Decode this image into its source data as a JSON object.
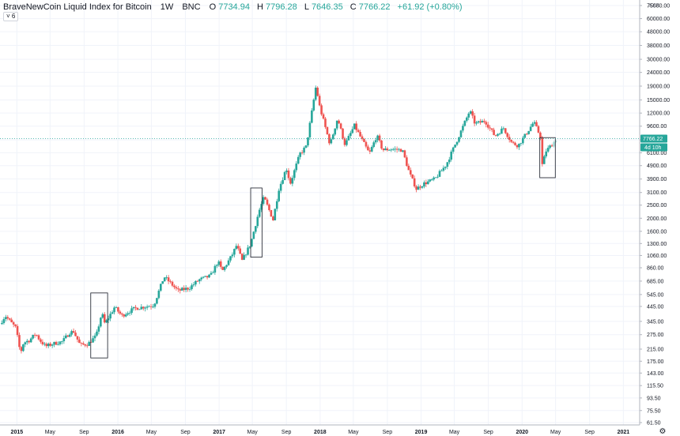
{
  "header": {
    "symbol": "BraveNewCoin Liquid Index for Bitcoin",
    "interval": "1W",
    "exchange": "BNC",
    "open_label": "O",
    "open": "7734.94",
    "high_label": "H",
    "high": "7796.28",
    "low_label": "L",
    "low": "7646.35",
    "close_label": "C",
    "close": "7766.22",
    "change": "+61.92 (+0.80%)",
    "indicator_toggle": "6"
  },
  "axis": {
    "currency": "XXX",
    "price_badge": "7766.22",
    "countdown_badge": "4d 10h",
    "gear": "⚙"
  },
  "colors": {
    "up": "#26a69a",
    "down": "#ef5350",
    "up_light": "#a6dbd6",
    "grid": "#f0f3fa",
    "price_line": "#26a69a"
  },
  "chart_data": {
    "type": "candlestick",
    "y_scale": "log",
    "ylim": [
      61.5,
      75000
    ],
    "y_ticks": [
      "61.50",
      "75.50",
      "93.50",
      "115.50",
      "143.00",
      "175.00",
      "215.00",
      "275.00",
      "345.00",
      "445.00",
      "545.00",
      "685.00",
      "860.00",
      "1060.00",
      "1300.00",
      "1600.00",
      "2000.00",
      "2500.00",
      "3100.00",
      "3900.00",
      "4900.00",
      "6100.00",
      "7600.00",
      "9600.00",
      "12000.00",
      "15000.00",
      "19000.00",
      "24000.00",
      "30000.00",
      "38000.00",
      "48000.00",
      "60000.00",
      "75000.00"
    ],
    "x_ticks": [
      "2015",
      "May",
      "Sep",
      "2016",
      "May",
      "Sep",
      "2017",
      "May",
      "Sep",
      "2018",
      "May",
      "Sep",
      "2019",
      "May",
      "Sep",
      "2020",
      "May",
      "Sep",
      "2021"
    ],
    "x_range": [
      "2014-11-01",
      "2021-03-01"
    ],
    "last_price": 7766.22,
    "path_points": [
      [
        "2014-11-01",
        330
      ],
      [
        "2014-11-20",
        380
      ],
      [
        "2014-12-10",
        340
      ],
      [
        "2014-12-28",
        310
      ],
      [
        "2015-01-14",
        200
      ],
      [
        "2015-01-25",
        240
      ],
      [
        "2015-02-15",
        250
      ],
      [
        "2015-03-10",
        280
      ],
      [
        "2015-03-25",
        250
      ],
      [
        "2015-04-15",
        225
      ],
      [
        "2015-05-10",
        235
      ],
      [
        "2015-06-15",
        245
      ],
      [
        "2015-07-10",
        285
      ],
      [
        "2015-07-25",
        290
      ],
      [
        "2015-08-18",
        230
      ],
      [
        "2015-09-15",
        235
      ],
      [
        "2015-10-15",
        270
      ],
      [
        "2015-11-04",
        400
      ],
      [
        "2015-11-15",
        330
      ],
      [
        "2015-12-20",
        440
      ],
      [
        "2016-01-15",
        380
      ],
      [
        "2016-03-01",
        430
      ],
      [
        "2016-05-10",
        455
      ],
      [
        "2016-06-16",
        740
      ],
      [
        "2016-07-10",
        660
      ],
      [
        "2016-08-05",
        580
      ],
      [
        "2016-09-15",
        610
      ],
      [
        "2016-10-20",
        700
      ],
      [
        "2016-12-01",
        750
      ],
      [
        "2016-12-28",
        960
      ],
      [
        "2017-01-12",
        810
      ],
      [
        "2017-02-15",
        1050
      ],
      [
        "2017-03-05",
        1260
      ],
      [
        "2017-03-25",
        970
      ],
      [
        "2017-04-25",
        1300
      ],
      [
        "2017-05-25",
        2250
      ],
      [
        "2017-06-12",
        2850
      ],
      [
        "2017-07-15",
        1950
      ],
      [
        "2017-08-05",
        3300
      ],
      [
        "2017-09-01",
        4700
      ],
      [
        "2017-09-15",
        3600
      ],
      [
        "2017-10-20",
        6000
      ],
      [
        "2017-11-12",
        6800
      ],
      [
        "2017-12-17",
        19000
      ],
      [
        "2017-12-30",
        13500
      ],
      [
        "2018-02-06",
        7000
      ],
      [
        "2018-03-05",
        11000
      ],
      [
        "2018-04-01",
        7000
      ],
      [
        "2018-05-05",
        9700
      ],
      [
        "2018-06-28",
        6000
      ],
      [
        "2018-07-25",
        8200
      ],
      [
        "2018-08-15",
        6400
      ],
      [
        "2018-09-15",
        6500
      ],
      [
        "2018-10-25",
        6400
      ],
      [
        "2018-11-20",
        4300
      ],
      [
        "2018-12-15",
        3300
      ],
      [
        "2019-01-10",
        3600
      ],
      [
        "2019-02-20",
        3900
      ],
      [
        "2019-04-02",
        5000
      ],
      [
        "2019-05-15",
        7900
      ],
      [
        "2019-06-26",
        12500
      ],
      [
        "2019-07-15",
        10000
      ],
      [
        "2019-08-20",
        10500
      ],
      [
        "2019-09-25",
        8100
      ],
      [
        "2019-10-26",
        9300
      ],
      [
        "2019-11-25",
        7200
      ],
      [
        "2019-12-18",
        6900
      ],
      [
        "2020-01-20",
        8700
      ],
      [
        "2020-02-12",
        10300
      ],
      [
        "2020-03-08",
        8000
      ],
      [
        "2020-03-13",
        4900
      ],
      [
        "2020-03-28",
        6300
      ],
      [
        "2020-04-20",
        7100
      ],
      [
        "2020-05-05",
        7766
      ]
    ],
    "annotations": [
      {
        "shape": "rectangle",
        "x": [
          "2015-09-25",
          "2015-11-25"
        ],
        "y": [
          185,
          560
        ]
      },
      {
        "shape": "rectangle",
        "x": [
          "2017-04-25",
          "2017-06-05"
        ],
        "y": [
          1030,
          3350
        ]
      },
      {
        "shape": "rectangle",
        "x": [
          "2020-03-05",
          "2020-04-30"
        ],
        "y": [
          3990,
          7900
        ]
      }
    ]
  }
}
